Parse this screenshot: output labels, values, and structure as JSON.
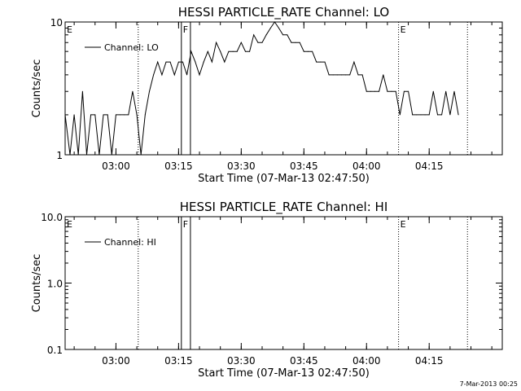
{
  "chart_data": [
    {
      "type": "line",
      "title": "HESSI PARTICLE_RATE Channel: LO",
      "xlabel": "Start Time (07-Mar-13 02:47:50)",
      "ylabel": "Counts/sec",
      "yscale": "log",
      "ylim": [
        1,
        10
      ],
      "xlim": [
        "02:47:50",
        "04:32:30"
      ],
      "yticks": [
        "1",
        "10"
      ],
      "xticks": [
        "03:00",
        "03:15",
        "03:30",
        "03:45",
        "04:00",
        "04:15"
      ],
      "legend": {
        "position": "top-left",
        "entries": [
          "Channel: LO"
        ]
      },
      "grid": false,
      "series": [
        {
          "name": "Channel: LO",
          "x": [
            "02:47:50",
            "02:49:00",
            "02:50:00",
            "02:51:00",
            "02:52:00",
            "02:53:00",
            "02:54:00",
            "02:55:00",
            "02:56:00",
            "02:57:00",
            "02:58:00",
            "02:59:00",
            "03:00:00",
            "03:01:00",
            "03:02:00",
            "03:03:00",
            "03:04:00",
            "03:05:00",
            "03:06:00",
            "03:07:00",
            "03:08:00",
            "03:09:00",
            "03:10:00",
            "03:11:00",
            "03:12:00",
            "03:13:00",
            "03:14:00",
            "03:15:00",
            "03:16:00",
            "03:17:00",
            "03:18:00",
            "03:19:00",
            "03:20:00",
            "03:21:00",
            "03:22:00",
            "03:23:00",
            "03:24:00",
            "03:25:00",
            "03:26:00",
            "03:27:00",
            "03:28:00",
            "03:29:00",
            "03:30:00",
            "03:31:00",
            "03:32:00",
            "03:33:00",
            "03:34:00",
            "03:35:00",
            "03:36:00",
            "03:37:00",
            "03:38:00",
            "03:39:00",
            "03:40:00",
            "03:41:00",
            "03:42:00",
            "03:43:00",
            "03:44:00",
            "03:45:00",
            "03:46:00",
            "03:47:00",
            "03:48:00",
            "03:49:00",
            "03:50:00",
            "03:51:00",
            "03:52:00",
            "03:53:00",
            "03:54:00",
            "03:55:00",
            "03:56:00",
            "03:57:00",
            "03:58:00",
            "03:59:00",
            "04:00:00",
            "04:01:00",
            "04:02:00",
            "04:03:00",
            "04:04:00",
            "04:05:00",
            "04:06:00",
            "04:07:00",
            "04:08:00",
            "04:09:00",
            "04:10:00",
            "04:11:00",
            "04:12:00",
            "04:13:00",
            "04:14:00",
            "04:15:00",
            "04:16:00",
            "04:17:00",
            "04:18:00",
            "04:19:00",
            "04:20:00",
            "04:21:00",
            "04:22:00"
          ],
          "values": [
            2,
            1,
            2,
            1,
            3,
            1,
            2,
            2,
            1,
            2,
            2,
            1,
            2,
            2,
            2,
            2,
            3,
            2,
            1,
            2,
            3,
            4,
            5,
            4,
            5,
            5,
            4,
            5,
            5,
            4,
            6,
            5,
            4,
            5,
            6,
            5,
            7,
            6,
            5,
            6,
            6,
            6,
            7,
            6,
            6,
            8,
            7,
            7,
            8,
            9,
            10,
            9,
            8,
            8,
            7,
            7,
            7,
            6,
            6,
            6,
            5,
            5,
            5,
            4,
            4,
            4,
            4,
            4,
            4,
            5,
            4,
            4,
            3,
            3,
            3,
            3,
            4,
            3,
            3,
            3,
            2,
            3,
            3,
            2,
            2,
            2,
            2,
            2,
            3,
            2,
            2,
            3,
            2,
            3,
            2
          ]
        }
      ],
      "annotations": [
        {
          "label": "E",
          "time": "02:47:50",
          "style": "dotted"
        },
        {
          "label": "",
          "time": "03:05:20",
          "style": "dotted"
        },
        {
          "label": "F",
          "time": "03:15:40",
          "style": "solid"
        },
        {
          "label": "",
          "time": "03:17:50",
          "style": "solid"
        },
        {
          "label": "E",
          "time": "04:07:40",
          "style": "dotted"
        },
        {
          "label": "",
          "time": "04:24:10",
          "style": "dotted"
        }
      ]
    },
    {
      "type": "line",
      "title": "HESSI PARTICLE_RATE Channel: HI",
      "xlabel": "Start Time (07-Mar-13 02:47:50)",
      "ylabel": "Counts/sec",
      "yscale": "log",
      "ylim": [
        0.1,
        10
      ],
      "xlim": [
        "02:47:50",
        "04:32:30"
      ],
      "yticks": [
        "0.1",
        "1.0",
        "10.0"
      ],
      "xticks": [
        "03:00",
        "03:15",
        "03:30",
        "03:45",
        "04:00",
        "04:15"
      ],
      "legend": {
        "position": "top-left",
        "entries": [
          "Channel: HI"
        ]
      },
      "grid": false,
      "series": [
        {
          "name": "Channel: HI",
          "x": [],
          "values": []
        }
      ],
      "annotations": [
        {
          "label": "E",
          "time": "02:47:50",
          "style": "dotted"
        },
        {
          "label": "",
          "time": "03:05:20",
          "style": "dotted"
        },
        {
          "label": "F",
          "time": "03:15:40",
          "style": "solid"
        },
        {
          "label": "",
          "time": "03:17:50",
          "style": "solid"
        },
        {
          "label": "E",
          "time": "04:07:40",
          "style": "dotted"
        },
        {
          "label": "",
          "time": "04:24:10",
          "style": "dotted"
        }
      ]
    }
  ],
  "footer": {
    "timestamp": "7-Mar-2013 00:25"
  }
}
